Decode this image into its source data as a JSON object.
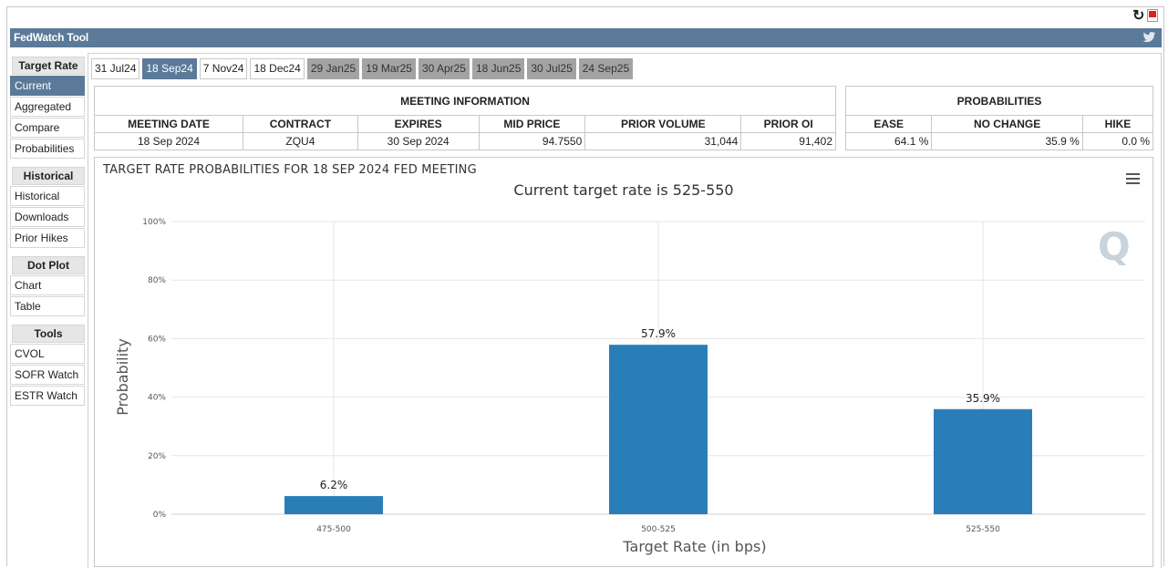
{
  "app": {
    "title": "FedWatch Tool"
  },
  "toolbar": {
    "refresh_icon": "refresh-icon",
    "pdf_icon": "pdf-icon",
    "twitter_icon": "twitter-icon"
  },
  "sidebar": {
    "sections": [
      {
        "header": "Target Rate",
        "items": [
          "Current",
          "Aggregated",
          "Compare",
          "Probabilities"
        ],
        "active": "Current"
      },
      {
        "header": "Historical",
        "items": [
          "Historical",
          "Downloads",
          "Prior Hikes"
        ]
      },
      {
        "header": "Dot Plot",
        "items": [
          "Chart",
          "Table"
        ]
      },
      {
        "header": "Tools",
        "items": [
          "CVOL",
          "SOFR Watch",
          "ESTR Watch"
        ]
      }
    ]
  },
  "tabs": [
    {
      "label": "31 Jul24",
      "state": "normal"
    },
    {
      "label": "18 Sep24",
      "state": "active"
    },
    {
      "label": "7 Nov24",
      "state": "normal"
    },
    {
      "label": "18 Dec24",
      "state": "normal"
    },
    {
      "label": "29 Jan25",
      "state": "future"
    },
    {
      "label": "19 Mar25",
      "state": "future"
    },
    {
      "label": "30 Apr25",
      "state": "future"
    },
    {
      "label": "18 Jun25",
      "state": "future"
    },
    {
      "label": "30 Jul25",
      "state": "future"
    },
    {
      "label": "24 Sep25",
      "state": "future"
    }
  ],
  "meeting_info": {
    "heading": "MEETING INFORMATION",
    "columns": [
      "MEETING DATE",
      "CONTRACT",
      "EXPIRES",
      "MID PRICE",
      "PRIOR VOLUME",
      "PRIOR OI"
    ],
    "row": [
      "18 Sep 2024",
      "ZQU4",
      "30 Sep 2024",
      "94.7550",
      "31,044",
      "91,402"
    ]
  },
  "probabilities": {
    "heading": "PROBABILITIES",
    "columns": [
      "EASE",
      "NO CHANGE",
      "HIKE"
    ],
    "row": [
      "64.1 %",
      "35.9 %",
      "0.0 %"
    ]
  },
  "chart": {
    "title": "TARGET RATE PROBABILITIES FOR 18 SEP 2024 FED MEETING",
    "subtitle": "Current target rate is 525-550",
    "menu_icon": "hamburger-menu-icon",
    "logo_text": "Q"
  },
  "chart_data": {
    "type": "bar",
    "title": "TARGET RATE PROBABILITIES FOR 18 SEP 2024 FED MEETING",
    "subtitle": "Current target rate is 525-550",
    "xlabel": "Target Rate (in bps)",
    "ylabel": "Probability",
    "categories": [
      "475-500",
      "500-525",
      "525-550"
    ],
    "values": [
      6.2,
      57.9,
      35.9
    ],
    "data_labels": [
      "6.2%",
      "57.9%",
      "35.9%"
    ],
    "ylim": [
      0,
      100
    ],
    "yticks": [
      "0%",
      "20%",
      "40%",
      "60%",
      "80%",
      "100%"
    ],
    "ytick_values": [
      0,
      20,
      40,
      60,
      80,
      100
    ],
    "grid": true,
    "bar_color": "#2a7eb8"
  }
}
